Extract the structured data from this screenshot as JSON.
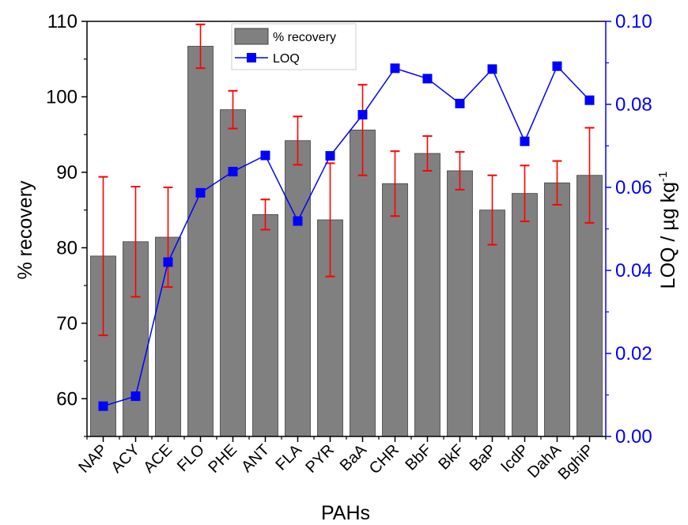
{
  "chart_data": {
    "type": "bar",
    "categories": [
      "NAP",
      "ACY",
      "ACE",
      "FLO",
      "PHE",
      "ANT",
      "FLA",
      "PYR",
      "BaA",
      "CHR",
      "BbF",
      "BkF",
      "BaP",
      "IcdP",
      "DahA",
      "BghiP"
    ],
    "series": [
      {
        "name": "% recovery",
        "type": "bar",
        "axis": "left",
        "values": [
          78.9,
          80.8,
          81.4,
          106.7,
          98.3,
          84.4,
          94.2,
          83.7,
          95.6,
          88.5,
          92.5,
          90.2,
          85.0,
          87.2,
          88.6,
          89.6
        ],
        "error": [
          10.5,
          7.3,
          6.6,
          2.9,
          2.5,
          2.0,
          3.2,
          7.5,
          6.0,
          4.3,
          2.3,
          2.5,
          4.6,
          3.7,
          2.9,
          6.3
        ]
      },
      {
        "name": "LOQ",
        "type": "line",
        "axis": "right",
        "values": [
          0.0073,
          0.0097,
          0.042,
          0.0587,
          0.0638,
          0.0677,
          0.0519,
          0.0676,
          0.0775,
          0.0887,
          0.0862,
          0.0802,
          0.0885,
          0.0711,
          0.0892,
          0.081
        ]
      }
    ],
    "xlabel": "PAHs",
    "ylabel": "% recovery",
    "y2label": "LOQ / µg kg",
    "y2label_sup": "-1",
    "ylim": [
      55,
      110
    ],
    "y2lim": [
      0.0,
      0.1
    ],
    "yticks": [
      "60",
      "70",
      "80",
      "90",
      "100",
      "110"
    ],
    "y2ticks": [
      "0.00",
      "0.02",
      "0.04",
      "0.06",
      "0.08",
      "0.10"
    ],
    "legend_position": "top-center",
    "grid": false,
    "colors": {
      "bar": "#808080",
      "bar_edge": "#404040",
      "error": "#ff0000",
      "line": "#0000ff",
      "left_axis": "#000000",
      "right_axis": "#0000ff"
    }
  }
}
